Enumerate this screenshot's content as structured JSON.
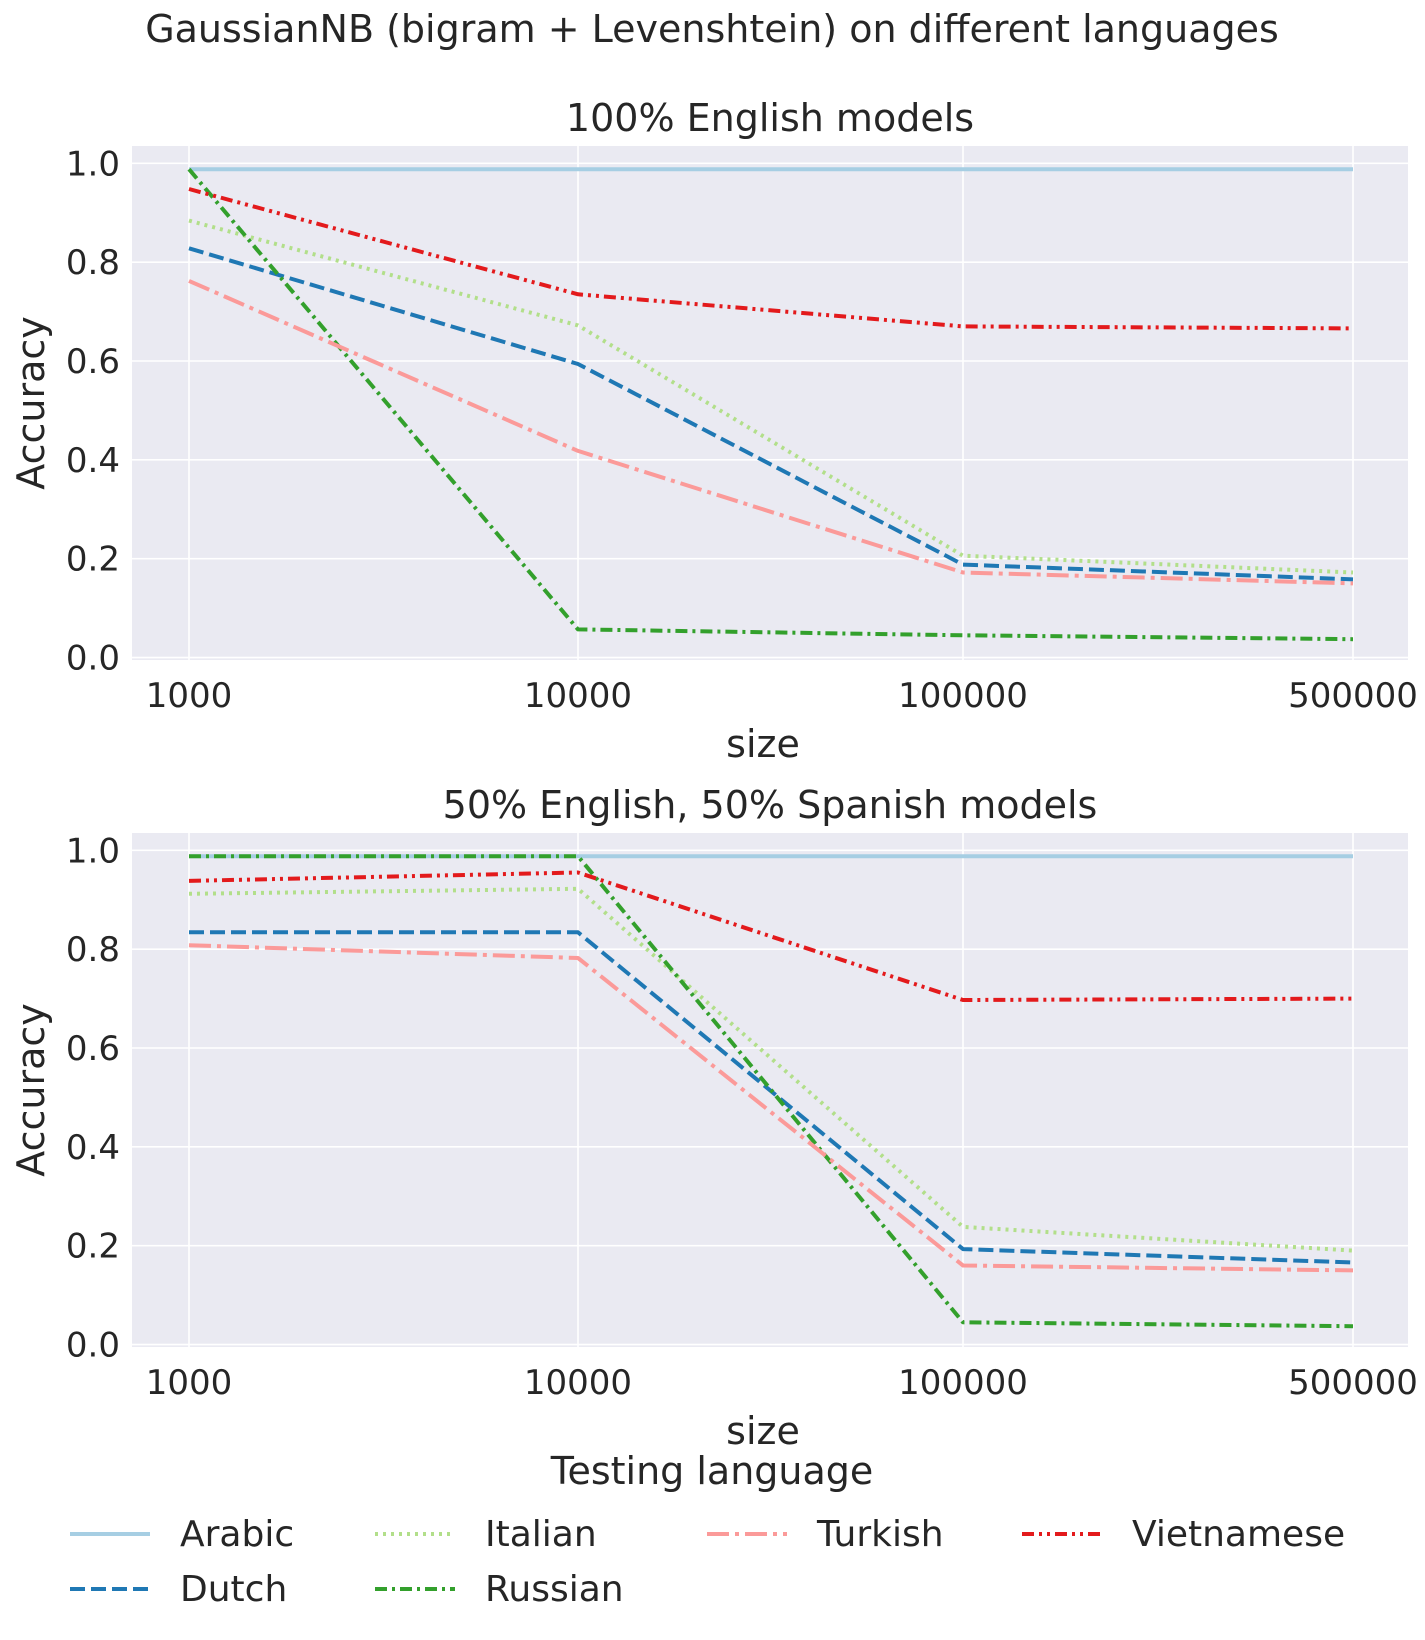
{
  "figure_title": "GaussianNB (bigram + Levenshtein) on different languages",
  "legend": {
    "title": "Testing language",
    "placement": "bottom-center"
  },
  "chart_data": [
    {
      "type": "line",
      "title": "100% English models",
      "xlabel": "size",
      "ylabel": "Accuracy",
      "categories": [
        "1000",
        "10000",
        "100000",
        "500000"
      ],
      "ylim": [
        -0.005,
        1.035
      ],
      "yticks": [
        "0.0",
        "0.2",
        "0.4",
        "0.6",
        "0.8",
        "1.0"
      ],
      "grid": true,
      "series": [
        {
          "name": "Arabic",
          "values": [
            0.988,
            0.988,
            0.988,
            0.988
          ],
          "color": "#a6cee3",
          "dash": "solid"
        },
        {
          "name": "Dutch",
          "values": [
            0.828,
            0.594,
            0.188,
            0.158
          ],
          "color": "#1f78b4",
          "dash": "dashed"
        },
        {
          "name": "Italian",
          "values": [
            0.884,
            0.672,
            0.206,
            0.172
          ],
          "color": "#b2df8a",
          "dash": "dotted"
        },
        {
          "name": "Russian",
          "values": [
            0.988,
            0.057,
            0.045,
            0.037
          ],
          "color": "#33a02c",
          "dash": "dashdot"
        },
        {
          "name": "Turkish",
          "values": [
            0.762,
            0.418,
            0.172,
            0.15
          ],
          "color": "#fb9a99",
          "dash": "longdashdot"
        },
        {
          "name": "Vietnamese",
          "values": [
            0.948,
            0.735,
            0.67,
            0.666
          ],
          "color": "#e31a1c",
          "dash": "dashdotdot"
        }
      ]
    },
    {
      "type": "line",
      "title": "50% English, 50% Spanish models",
      "xlabel": "size",
      "ylabel": "Accuracy",
      "categories": [
        "1000",
        "10000",
        "100000",
        "500000"
      ],
      "ylim": [
        -0.005,
        1.035
      ],
      "yticks": [
        "0.0",
        "0.2",
        "0.4",
        "0.6",
        "0.8",
        "1.0"
      ],
      "grid": true,
      "series": [
        {
          "name": "Arabic",
          "values": [
            0.988,
            0.988,
            0.988,
            0.988
          ],
          "color": "#a6cee3",
          "dash": "solid"
        },
        {
          "name": "Dutch",
          "values": [
            0.834,
            0.834,
            0.193,
            0.166
          ],
          "color": "#1f78b4",
          "dash": "dashed"
        },
        {
          "name": "Italian",
          "values": [
            0.912,
            0.922,
            0.238,
            0.19
          ],
          "color": "#b2df8a",
          "dash": "dotted"
        },
        {
          "name": "Russian",
          "values": [
            0.988,
            0.988,
            0.045,
            0.037
          ],
          "color": "#33a02c",
          "dash": "dashdot"
        },
        {
          "name": "Turkish",
          "values": [
            0.808,
            0.782,
            0.16,
            0.15
          ],
          "color": "#fb9a99",
          "dash": "longdashdot"
        },
        {
          "name": "Vietnamese",
          "values": [
            0.938,
            0.955,
            0.697,
            0.7
          ],
          "color": "#e31a1c",
          "dash": "dashdotdot"
        }
      ]
    }
  ]
}
